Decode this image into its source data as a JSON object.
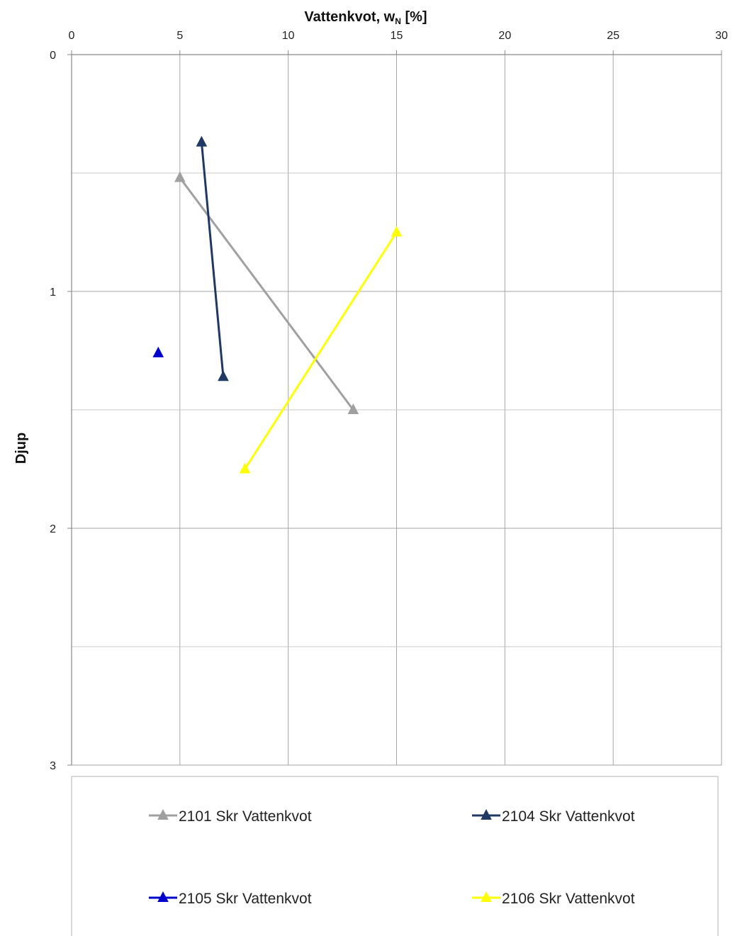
{
  "chart_data": {
    "type": "line",
    "title": "",
    "xlabel": "Vattenkvot, w",
    "xlabel_sub": "N",
    "xlabel_suffix": " [%]",
    "ylabel": "Djup",
    "xlim": [
      0,
      30
    ],
    "ylim": [
      0,
      3
    ],
    "y_inverted": true,
    "x_axis_position": "top",
    "x_ticks": [
      0,
      5,
      10,
      15,
      20,
      25,
      30
    ],
    "y_ticks": [
      0,
      1,
      2,
      3
    ],
    "y_minor_gridlines": [
      0.5,
      1.5,
      2.5
    ],
    "grid": true,
    "legend_position": "bottom",
    "series": [
      {
        "name": "2101 Skr Vattenkvot",
        "color": "#a0a0a0",
        "marker": "triangle",
        "points": [
          {
            "x": 5,
            "y": 0.52
          },
          {
            "x": 13,
            "y": 1.5
          }
        ]
      },
      {
        "name": "2104 Skr Vattenkvot",
        "color": "#1f3864",
        "marker": "triangle",
        "points": [
          {
            "x": 6,
            "y": 0.37
          },
          {
            "x": 7,
            "y": 1.36
          }
        ]
      },
      {
        "name": "2105 Skr Vattenkvot",
        "color": "#0000cc",
        "marker": "triangle",
        "points": [
          {
            "x": 4,
            "y": 1.26
          }
        ]
      },
      {
        "name": "2106 Skr Vattenkvot",
        "color": "#ffff00",
        "marker": "triangle",
        "points": [
          {
            "x": 8,
            "y": 1.75
          },
          {
            "x": 15,
            "y": 0.75
          }
        ]
      }
    ]
  }
}
